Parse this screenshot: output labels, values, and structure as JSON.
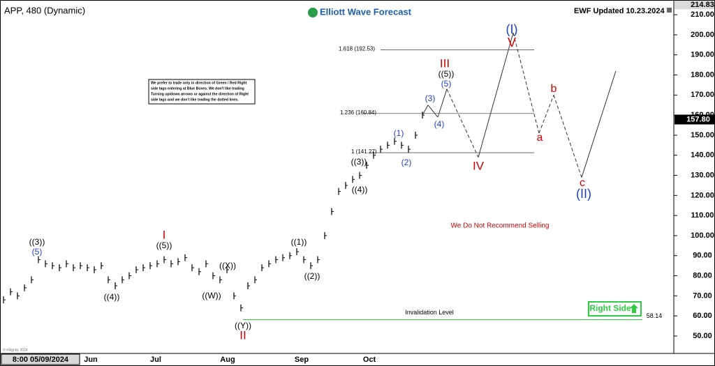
{
  "chart_data": {
    "type": "price",
    "title": "APP, 480 (Dynamic)",
    "brand": "Elliott Wave Forecast",
    "updated": "EWF Updated 10.23.2024",
    "copyright": "© eSignal, 2024",
    "note": [
      "We prefer to trade only in direction of Green / Red Right",
      "side tags entering at Blue Boxes. We don't like trading",
      "Turning up/down arrows or against the direction of Right",
      "side tags and we don't like trading the dotted lines."
    ],
    "x_labels": [
      "8:00 05/09/2024",
      "Jun",
      "Jul",
      "Aug",
      "Sep",
      "Oct"
    ],
    "values": [
      68,
      72,
      70,
      74,
      78,
      88,
      86,
      85,
      84,
      86,
      84,
      85,
      84,
      83,
      85,
      78,
      75,
      78,
      80,
      83,
      84,
      85,
      86,
      88,
      86,
      87,
      89,
      84,
      82,
      86,
      80,
      78,
      83,
      70,
      64,
      75,
      78,
      84,
      86,
      88,
      89,
      90,
      92,
      88,
      85,
      88,
      100,
      112,
      122,
      125,
      128,
      130,
      135,
      140,
      143,
      145,
      147,
      145,
      143,
      150,
      160
    ],
    "color": "#000000",
    "ylim": [
      42,
      215.6
    ],
    "yticks": [
      {
        "value": 50,
        "label": "50.00"
      },
      {
        "value": 60,
        "label": "60.00"
      },
      {
        "value": 70,
        "label": "70.00"
      },
      {
        "value": 80,
        "label": "80.00"
      },
      {
        "value": 90,
        "label": "90.00"
      },
      {
        "value": 100,
        "label": "100.00"
      },
      {
        "value": 110,
        "label": "110.00"
      },
      {
        "value": 120,
        "label": "120.00"
      },
      {
        "value": 130,
        "label": "130.00"
      },
      {
        "value": 140,
        "label": "140.00"
      },
      {
        "value": 150,
        "label": "150.00"
      },
      {
        "value": 160,
        "label": "160.00"
      },
      {
        "value": 170,
        "label": "170.00"
      },
      {
        "value": 180,
        "label": "180.00"
      },
      {
        "value": 190,
        "label": "190.00"
      },
      {
        "value": 200,
        "label": "200.00"
      },
      {
        "value": 210,
        "label": "210.00"
      }
    ],
    "high_price": 214.83,
    "last_price": {
      "value": 157.8,
      "label": "157.80"
    },
    "levels": [
      {
        "value": 192.53,
        "label": "1.618 (192.53)"
      },
      {
        "value": 160.84,
        "label": "1.236 (160.84)"
      },
      {
        "value": 141.27,
        "label": "1 (141.27)"
      }
    ],
    "invalidation": {
      "value": 58.14,
      "label": "58.14",
      "text": "Invalidation Level",
      "color": "#2ecc40"
    },
    "projection": [
      165,
      159,
      173,
      139,
      201,
      151,
      170,
      129,
      182
    ],
    "wave_labels": [
      {
        "text": "((3))",
        "color": "#000000"
      },
      {
        "text": "(5)",
        "color": "#1f3fbf"
      },
      {
        "text": "I",
        "color": "#d40000"
      },
      {
        "text": "((5))",
        "color": "#000000"
      },
      {
        "text": "((4))",
        "color": "#000000"
      },
      {
        "text": "((X))",
        "color": "#000000"
      },
      {
        "text": "((W))",
        "color": "#000000"
      },
      {
        "text": "((Y))",
        "color": "#000000"
      },
      {
        "text": "II",
        "color": "#d40000"
      },
      {
        "text": "((1))",
        "color": "#000000"
      },
      {
        "text": "((2))",
        "color": "#000000"
      },
      {
        "text": "((3))",
        "color": "#000000"
      },
      {
        "text": "((4))",
        "color": "#000000"
      },
      {
        "text": "(1)",
        "color": "#1f3fbf"
      },
      {
        "text": "(2)",
        "color": "#1f3fbf"
      },
      {
        "text": "(3)",
        "color": "#1f3fbf"
      },
      {
        "text": "(4)",
        "color": "#1f3fbf"
      },
      {
        "text": "(5)",
        "color": "#1f3fbf"
      },
      {
        "text": "((5))",
        "color": "#000000"
      },
      {
        "text": "III",
        "color": "#d40000"
      },
      {
        "text": "IV",
        "color": "#d40000"
      },
      {
        "text": "(I)",
        "color": "#1f3fbf"
      },
      {
        "text": "V",
        "color": "#d40000"
      },
      {
        "text": "a",
        "color": "#d40000"
      },
      {
        "text": "b",
        "color": "#d40000"
      },
      {
        "text": "c",
        "color": "#d40000"
      },
      {
        "text": "(II)",
        "color": "#1f3fbf"
      }
    ],
    "warning": {
      "text": "We Do Not Recommend Selling",
      "color": "#d40000"
    },
    "right_side": "Right Side"
  }
}
